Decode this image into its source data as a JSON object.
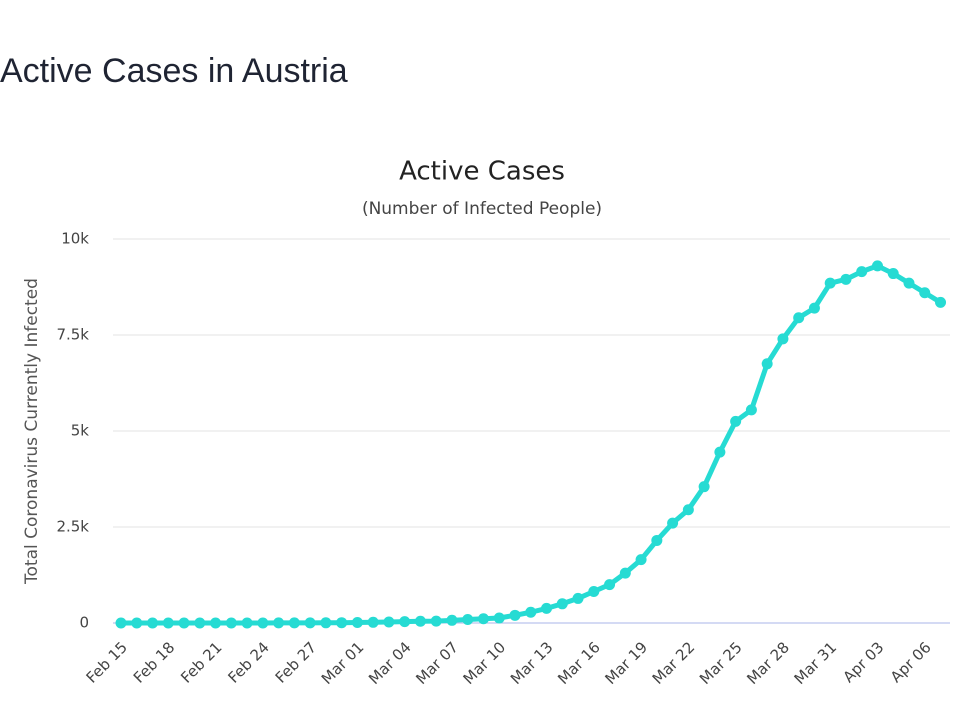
{
  "page_title": "Active Cases in Austria",
  "chart_data": {
    "type": "line",
    "title": "Active Cases",
    "subtitle": "(Number of Infected People)",
    "y_label": "Total Coronavirus Currently Infected",
    "categories": [
      "Feb 15",
      null,
      null,
      "Feb 18",
      null,
      null,
      "Feb 21",
      null,
      null,
      "Feb 24",
      null,
      null,
      "Feb 27",
      null,
      null,
      "Mar 01",
      null,
      null,
      "Mar 04",
      null,
      null,
      "Mar 07",
      null,
      null,
      "Mar 10",
      null,
      null,
      "Mar 13",
      null,
      null,
      "Mar 16",
      null,
      null,
      "Mar 19",
      null,
      null,
      "Mar 22",
      null,
      null,
      "Mar 25",
      null,
      null,
      "Mar 28",
      null,
      null,
      "Mar 31",
      null,
      null,
      "Apr 03",
      null,
      null,
      "Apr 06",
      null
    ],
    "series": [
      {
        "name": "Currently Infected",
        "color": "#26dbd3",
        "values": [
          0,
          0,
          0,
          0,
          0,
          0,
          0,
          0,
          0,
          0,
          2,
          2,
          3,
          5,
          8,
          12,
          18,
          25,
          35,
          45,
          50,
          70,
          90,
          110,
          130,
          200,
          280,
          380,
          500,
          640,
          820,
          1000,
          1300,
          1650,
          2150,
          2600,
          2950,
          3550,
          4450,
          5250,
          5550,
          6750,
          7400,
          7950,
          8200,
          8850,
          8950,
          9150,
          9300,
          9100,
          8850,
          8600,
          8350
        ]
      }
    ],
    "ylim": [
      0,
      10000
    ],
    "yticks": [
      0,
      {
        "value": 2500,
        "label": "2.5k"
      },
      {
        "value": 5000,
        "label": "5k"
      },
      {
        "value": 7500,
        "label": "7.5k"
      },
      {
        "value": 10000,
        "label": "10k"
      }
    ],
    "grid": true
  }
}
